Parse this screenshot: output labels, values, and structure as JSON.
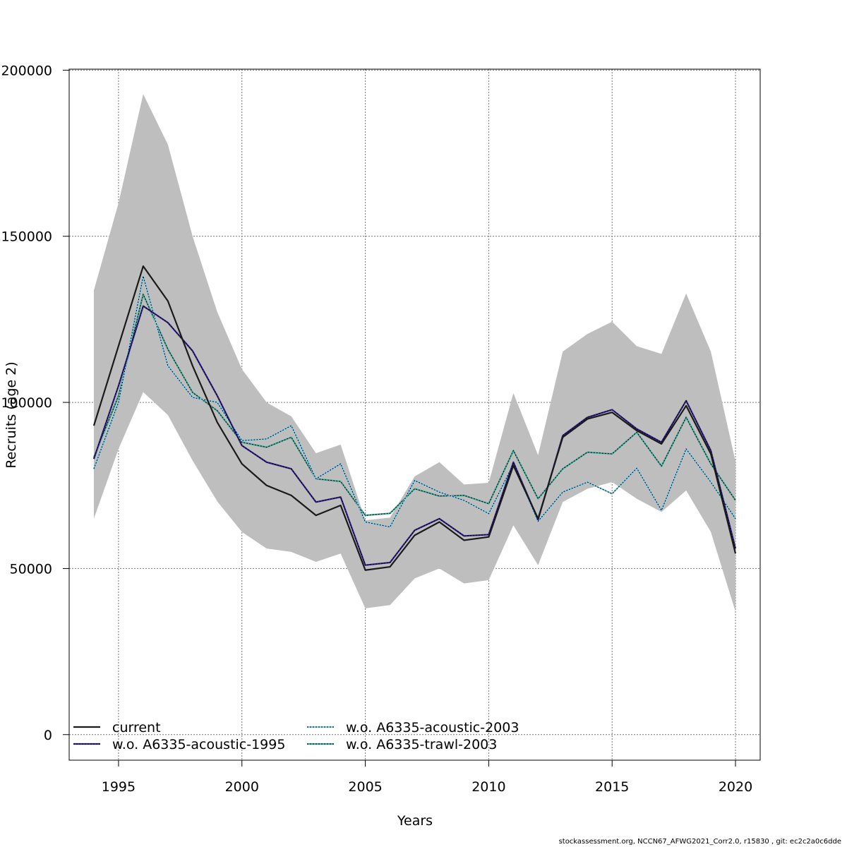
{
  "footer_text": "stockassessment.org, NCCN67_AFWG2021_Corr2.0, r15830 , git: ec2c2a0c6dde",
  "chart_data": {
    "type": "line",
    "title": "",
    "xlabel": "Years",
    "ylabel": "Recruits (age 2)",
    "xlim": [
      1993,
      2021
    ],
    "ylim": [
      -7700,
      200300
    ],
    "x_ticks": [
      1995,
      2000,
      2005,
      2010,
      2015,
      2020
    ],
    "y_ticks": [
      0,
      50000,
      100000,
      150000,
      200000
    ],
    "x_tick_labels": [
      "1995",
      "2000",
      "2005",
      "2010",
      "2015",
      "2020"
    ],
    "y_tick_labels": [
      "0",
      "50000",
      "100000",
      "150000",
      "200000"
    ],
    "grid": true,
    "legend_position": "bottom-left",
    "x": [
      1994,
      1995,
      1996,
      1997,
      1998,
      1999,
      2000,
      2001,
      2002,
      2003,
      2004,
      2005,
      2006,
      2007,
      2008,
      2009,
      2010,
      2011,
      2012,
      2013,
      2014,
      2015,
      2016,
      2017,
      2018,
      2019,
      2020
    ],
    "confidence_band": {
      "color": "#bebebe",
      "upper": [
        133700,
        160000,
        192800,
        177600,
        150000,
        127200,
        110000,
        100000,
        95800,
        84700,
        87300,
        64500,
        65300,
        77700,
        82000,
        75300,
        75800,
        102800,
        84100,
        115300,
        120600,
        124300,
        116900,
        114600,
        132800,
        115300,
        82200
      ],
      "lower": [
        65000,
        86000,
        103100,
        96200,
        82500,
        70200,
        61000,
        56000,
        55000,
        52000,
        54500,
        38000,
        39000,
        47000,
        50000,
        45500,
        46500,
        63000,
        51000,
        70000,
        74000,
        76000,
        71000,
        67000,
        73500,
        61000,
        37000
      ]
    },
    "series": [
      {
        "name": "current",
        "color": "#1a1a1a",
        "dotted": false,
        "values": [
          93000,
          117000,
          141000,
          130500,
          111000,
          94000,
          81500,
          75000,
          72000,
          66000,
          69000,
          49500,
          50500,
          60000,
          64000,
          58500,
          59500,
          81000,
          65000,
          89500,
          95000,
          97000,
          91500,
          87500,
          99000,
          84500,
          54500
        ]
      },
      {
        "name": "w.o. A6335-acoustic-1995",
        "color": "#2e2185",
        "dotted": true,
        "values": [
          83000,
          105000,
          129000,
          124000,
          115500,
          102000,
          87000,
          82000,
          80000,
          70000,
          71500,
          51000,
          51800,
          61500,
          65000,
          59800,
          60200,
          82000,
          64700,
          90000,
          95500,
          97800,
          92000,
          88000,
          100500,
          85500,
          56000
        ]
      },
      {
        "name": "w.o. A6335-acoustic-2003",
        "color": "#87ceeb",
        "dotted": true,
        "values": [
          80000,
          100000,
          138000,
          111000,
          101500,
          100000,
          88500,
          89000,
          93000,
          77000,
          81500,
          64000,
          62500,
          76500,
          73000,
          70500,
          66500,
          81500,
          64200,
          73000,
          76000,
          72500,
          80200,
          67500,
          86000,
          76000,
          65000
        ]
      },
      {
        "name": "w.o. A6335-trawl-2003",
        "color": "#44aa99",
        "dotted": true,
        "values": [
          83500,
          102000,
          132500,
          116000,
          103000,
          97500,
          88000,
          86500,
          89500,
          77000,
          76200,
          66000,
          66600,
          74000,
          71800,
          72000,
          69500,
          85500,
          71000,
          80000,
          85000,
          84500,
          91000,
          80800,
          95500,
          81500,
          70500
        ]
      }
    ]
  }
}
